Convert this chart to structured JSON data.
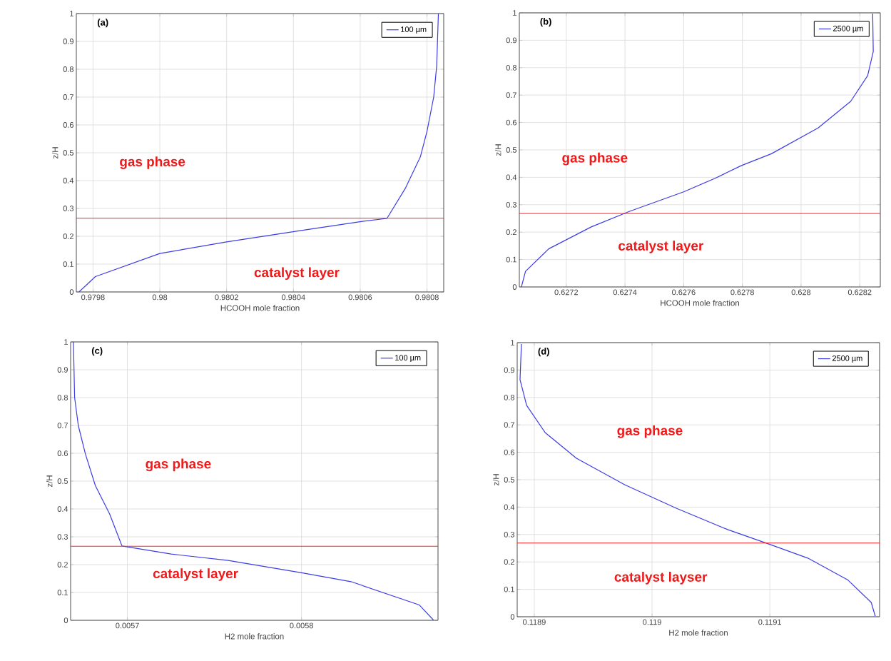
{
  "chart_data": [
    {
      "type": "line",
      "title": "(a)",
      "xlabel": "HCOOH mole fraction",
      "ylabel": "z/H",
      "xlim": [
        0.97975,
        0.98085
      ],
      "ylim": [
        0,
        1
      ],
      "xticks": [
        0.9798,
        0.98,
        0.9802,
        0.9804,
        0.9806,
        0.9808
      ],
      "yticks": [
        0,
        0.1,
        0.2,
        0.3,
        0.4,
        0.5,
        0.6,
        0.7,
        0.8,
        0.9,
        1
      ],
      "grid": true,
      "legend": "top right",
      "series": [
        {
          "name": "100 µm",
          "color": "#3c3ce6",
          "x": [
            0.979758,
            0.979807,
            0.98,
            0.9802,
            0.98042,
            0.98061,
            0.98068,
            0.980735,
            0.98078,
            0.9808,
            0.98082,
            0.980829,
            0.980834
          ],
          "values": [
            0,
            0.055,
            0.138,
            0.18,
            0.22,
            0.254,
            0.264,
            0.372,
            0.485,
            0.577,
            0.7,
            0.813,
            1.0
          ]
        }
      ],
      "ref_lines": [
        {
          "axis": "y",
          "value": 0.265,
          "color": "#ff2020"
        }
      ],
      "annotations": [
        "gas phase",
        "catalyst layer"
      ]
    },
    {
      "type": "line",
      "title": "(b)",
      "xlabel": "HCOOH mole fraction",
      "ylabel": "z/H",
      "xlim": [
        0.62704,
        0.62827
      ],
      "ylim": [
        0,
        1
      ],
      "xticks": [
        0.6272,
        0.6274,
        0.6276,
        0.6278,
        0.628,
        0.6282
      ],
      "yticks": [
        0,
        0.1,
        0.2,
        0.3,
        0.4,
        0.5,
        0.6,
        0.7,
        0.8,
        0.9,
        1
      ],
      "grid": true,
      "legend": "top right",
      "series": [
        {
          "name": "2500 µm",
          "color": "#3c3ce6",
          "x": [
            0.627047,
            0.627061,
            0.62714,
            0.627285,
            0.627416,
            0.6276,
            0.627706,
            0.627797,
            0.627899,
            0.628058,
            0.628169,
            0.628227,
            0.628246,
            0.628244
          ],
          "values": [
            0,
            0.057,
            0.139,
            0.219,
            0.276,
            0.347,
            0.396,
            0.443,
            0.486,
            0.58,
            0.677,
            0.771,
            0.859,
            0.997
          ]
        }
      ],
      "ref_lines": [
        {
          "axis": "y",
          "value": 0.268,
          "color": "#ff2020"
        }
      ],
      "annotations": [
        "gas phase",
        "catalyst layer"
      ]
    },
    {
      "type": "line",
      "title": "(c)",
      "xlabel": "H2 mole fraction",
      "ylabel": "z/H",
      "xlim": [
        0.0056674,
        0.0058784
      ],
      "ylim": [
        0,
        1
      ],
      "xticks": [
        0.0057,
        0.0058
      ],
      "yticks": [
        0,
        0.1,
        0.2,
        0.3,
        0.4,
        0.5,
        0.6,
        0.7,
        0.8,
        0.9,
        1
      ],
      "grid": true,
      "legend": "top right",
      "series": [
        {
          "name": "100 µm",
          "color": "#3c3ce6",
          "x": [
            0.005669,
            0.0056697,
            0.0056718,
            0.0056759,
            0.0056816,
            0.0056898,
            0.0056969,
            0.0057251,
            0.0057579,
            0.0058,
            0.0058284,
            0.0058677,
            0.0058759
          ],
          "values": [
            1.0,
            0.8,
            0.7,
            0.597,
            0.484,
            0.382,
            0.267,
            0.238,
            0.215,
            0.171,
            0.139,
            0.055,
            0
          ]
        }
      ],
      "ref_lines": [
        {
          "axis": "y",
          "value": 0.266,
          "color": "#ff2020"
        }
      ],
      "annotations": [
        "gas phase",
        "catalyst layer"
      ]
    },
    {
      "type": "line",
      "title": "(d)",
      "xlabel": "H2 mole fraction",
      "ylabel": "z/H",
      "xlim": [
        0.1188855,
        0.1191932
      ],
      "ylim": [
        0,
        1
      ],
      "xticks": [
        0.1189,
        0.119,
        0.1191
      ],
      "yticks": [
        0,
        0.1,
        0.2,
        0.3,
        0.4,
        0.5,
        0.6,
        0.7,
        0.8,
        0.9,
        1
      ],
      "grid": true,
      "legend": "top right",
      "series": [
        {
          "name": "2500 µm",
          "color": "#3c3ce6",
          "x": [
            0.1188891,
            0.1188879,
            0.1188935,
            0.1189092,
            0.1189358,
            0.118977,
            0.1190206,
            0.1190642,
            0.1191,
            0.1191322,
            0.119166,
            0.1191861,
            0.1191895
          ],
          "values": [
            0.995,
            0.865,
            0.771,
            0.672,
            0.578,
            0.481,
            0.396,
            0.318,
            0.264,
            0.214,
            0.135,
            0.052,
            0.002
          ]
        }
      ],
      "ref_lines": [
        {
          "axis": "y",
          "value": 0.269,
          "color": "#ff2020"
        }
      ],
      "annotations": [
        "gas phase",
        "catalyst layser"
      ]
    }
  ]
}
